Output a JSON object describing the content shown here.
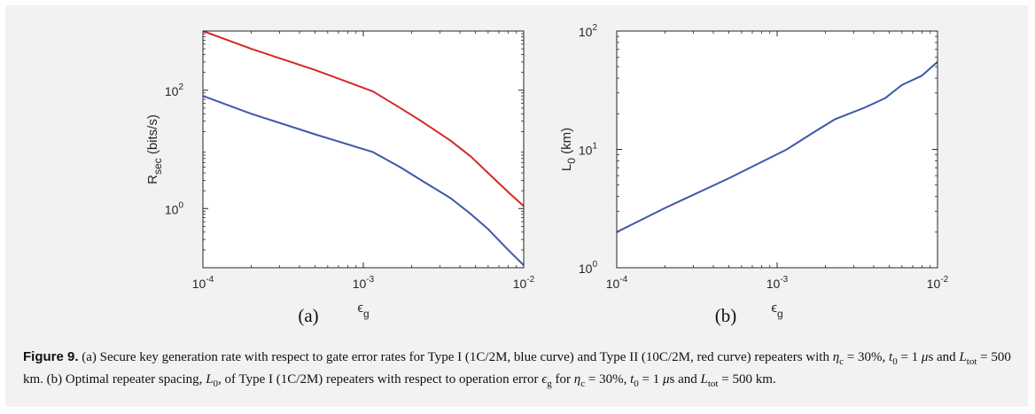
{
  "chart_data": [
    {
      "type": "line",
      "panel": "(a)",
      "xlabel": "ϵg",
      "ylabel": "Rsec (bits/s)",
      "xscale": "log",
      "yscale": "log",
      "xlim": [
        0.0001,
        0.01
      ],
      "ylim": [
        0.1,
        1000
      ],
      "x_ticks": [
        {
          "base": "10",
          "exp": "-4",
          "value": 0.0001
        },
        {
          "base": "10",
          "exp": "-3",
          "value": 0.001
        },
        {
          "base": "10",
          "exp": "-2",
          "value": 0.01
        }
      ],
      "y_ticks": [
        {
          "base": "10",
          "exp": "0",
          "value": 1
        },
        {
          "base": "10",
          "exp": "2",
          "value": 100
        }
      ],
      "grid": false,
      "series": [
        {
          "color": "#d7262b",
          "points": [
            [
              0.0001,
              1000
            ],
            [
              0.0002,
              500
            ],
            [
              0.0005,
              220
            ],
            [
              0.00115,
              95
            ],
            [
              0.0017,
              50
            ],
            [
              0.0023,
              30
            ],
            [
              0.0035,
              14
            ],
            [
              0.0047,
              7.5
            ],
            [
              0.006,
              4
            ],
            [
              0.008,
              1.9
            ],
            [
              0.01,
              1.1
            ]
          ]
        },
        {
          "color": "#3e58a9",
          "points": [
            [
              0.0001,
              80
            ],
            [
              0.0002,
              40
            ],
            [
              0.0005,
              18
            ],
            [
              0.00115,
              9
            ],
            [
              0.0017,
              5
            ],
            [
              0.0023,
              3
            ],
            [
              0.0035,
              1.5
            ],
            [
              0.0047,
              0.8
            ],
            [
              0.006,
              0.45
            ],
            [
              0.008,
              0.2
            ],
            [
              0.01,
              0.11
            ]
          ]
        }
      ]
    },
    {
      "type": "line",
      "panel": "(b)",
      "xlabel": "ϵg",
      "ylabel": "L0 (km)",
      "xscale": "log",
      "yscale": "log",
      "xlim": [
        0.0001,
        0.01
      ],
      "ylim": [
        1,
        100
      ],
      "x_ticks": [
        {
          "base": "10",
          "exp": "-4",
          "value": 0.0001
        },
        {
          "base": "10",
          "exp": "-3",
          "value": 0.001
        },
        {
          "base": "10",
          "exp": "-2",
          "value": 0.01
        }
      ],
      "y_ticks": [
        {
          "base": "10",
          "exp": "0",
          "value": 1
        },
        {
          "base": "10",
          "exp": "1",
          "value": 10
        },
        {
          "base": "10",
          "exp": "2",
          "value": 100
        }
      ],
      "grid": false,
      "series": [
        {
          "color": "#3e58a9",
          "points": [
            [
              0.0001,
              2
            ],
            [
              0.0002,
              3.2
            ],
            [
              0.0005,
              5.7
            ],
            [
              0.00115,
              10
            ],
            [
              0.0017,
              14
            ],
            [
              0.0023,
              18
            ],
            [
              0.0035,
              22.5
            ],
            [
              0.0047,
              27
            ],
            [
              0.006,
              35
            ],
            [
              0.008,
              42
            ],
            [
              0.01,
              55
            ]
          ]
        }
      ]
    }
  ],
  "panels": {
    "a": "(a)",
    "b": "(b)"
  },
  "caption": {
    "label": "Figure 9.",
    "text_1": " (a) Secure key generation rate with respect to gate error rates for Type I (1C/2M, blue curve) and Type II (10C/2M, red curve) repeaters with ",
    "eta": "η",
    "eta_sub": "c",
    "eq_eta": " = 30%, ",
    "t": "t",
    "t_sub": "0",
    "eq_t": " = 1 ",
    "mu": "μ",
    "s_and": "s and ",
    "L": "L",
    "L_sub": "tot",
    "eq_L": " = 500 km. (b) Optimal repeater spacing, ",
    "L0": "L",
    "L0_sub": "0",
    "text_2": ", of Type I (1C/2M) repeaters with respect to operation error ",
    "eps": "ϵ",
    "eps_sub": "g",
    "text_3": " for ",
    "eta2": "η",
    "eta2_sub": "c",
    "eq_eta2": " = 30%, ",
    "t2": "t",
    "t2_sub": "0",
    "eq_t2": " = 1 ",
    "mu2": "μ",
    "s_and2": "s and ",
    "L2": "L",
    "L2_sub": "tot",
    "eq_L2": " = 500 km."
  }
}
